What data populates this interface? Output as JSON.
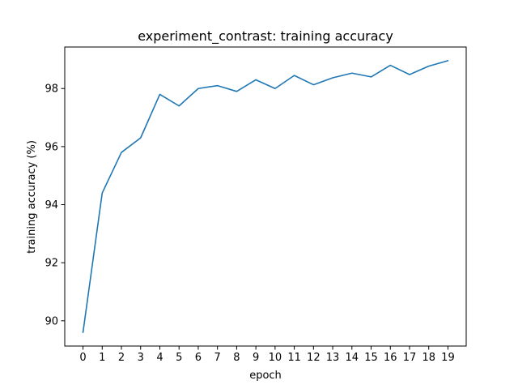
{
  "chart_data": {
    "type": "line",
    "title": "experiment_contrast: training accuracy",
    "xlabel": "epoch",
    "ylabel": "training accuracy (%)",
    "x": [
      0,
      1,
      2,
      3,
      4,
      5,
      6,
      7,
      8,
      9,
      10,
      11,
      12,
      13,
      14,
      15,
      16,
      17,
      18,
      19
    ],
    "series": [
      {
        "values": [
          89.6,
          94.4,
          95.8,
          96.3,
          97.8,
          97.4,
          98.0,
          98.1,
          97.9,
          98.3,
          98.0,
          98.45,
          98.13,
          98.37,
          98.53,
          98.4,
          98.8,
          98.48,
          98.77,
          98.96
        ]
      }
    ],
    "xticks": [
      0,
      1,
      2,
      3,
      4,
      5,
      6,
      7,
      8,
      9,
      10,
      11,
      12,
      13,
      14,
      15,
      16,
      17,
      18,
      19
    ],
    "yticks": [
      90,
      92,
      94,
      96,
      98
    ],
    "xlim": [
      -0.95,
      19.95
    ],
    "ylim": [
      89.13,
      99.43
    ],
    "grid": false,
    "colors": {
      "line": "#1f77b4"
    }
  }
}
